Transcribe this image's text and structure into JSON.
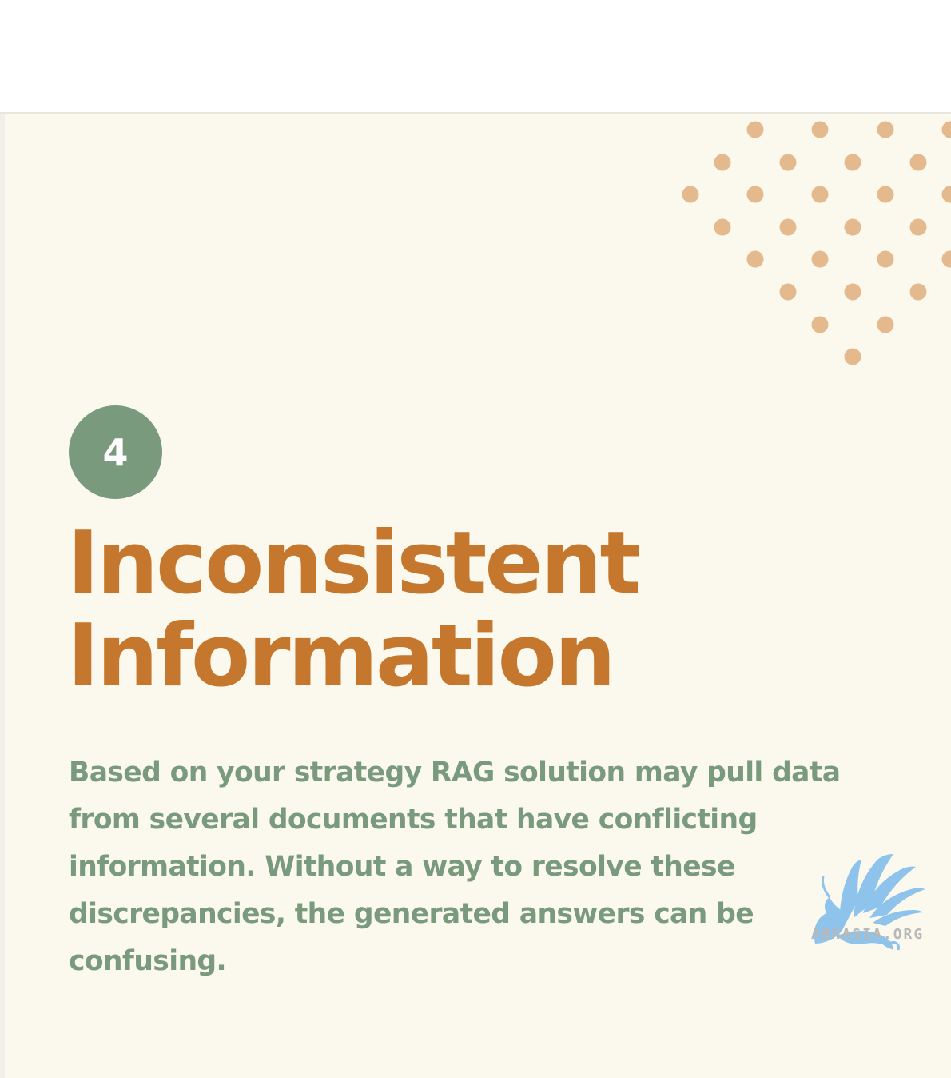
{
  "card": {
    "number": "4",
    "title_line1": "Inconsistent",
    "title_line2": "Information",
    "body": "Based on your strategy RAG solution may pull data from several documents that have conflicting information. Without a way to resolve these discrepancies, the generated answers can be confusing."
  },
  "decoration": {
    "icon": "dot-pattern",
    "dot_color": "#e3b98d"
  },
  "watermark": {
    "icon": "griffin-logo",
    "text": "ABNASIA.ORG"
  },
  "colors": {
    "background": "#fbf8ee",
    "title": "#c5782d",
    "body": "#7a9a7e",
    "badge": "#7a9a7e"
  }
}
